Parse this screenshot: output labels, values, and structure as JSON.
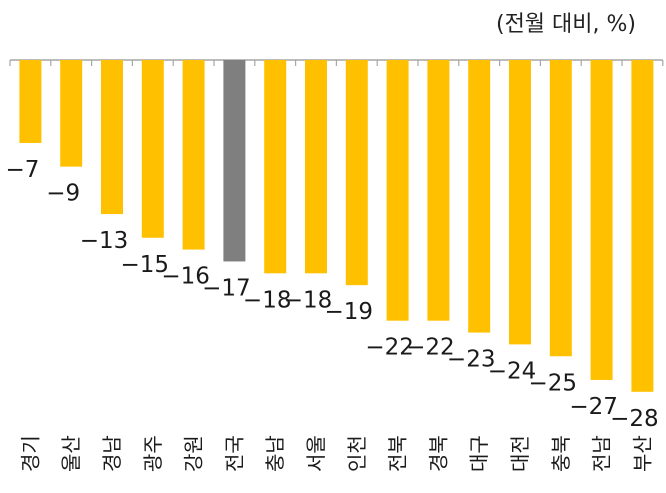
{
  "unit_label": "(전월 대비, %)",
  "chart_data": {
    "type": "bar",
    "title": "",
    "xlabel": "",
    "ylabel": "",
    "ylim": [
      -30,
      0
    ],
    "categories": [
      "경기",
      "울산",
      "경남",
      "광주",
      "강원",
      "전국",
      "충남",
      "서울",
      "인천",
      "전북",
      "경북",
      "대구",
      "대전",
      "충북",
      "전남",
      "부산"
    ],
    "values": [
      -7,
      -9,
      -13,
      -15,
      -16,
      -17,
      -18,
      -18,
      -19,
      -22,
      -22,
      -23,
      -24,
      -25,
      -27,
      -28
    ],
    "labels": [
      "−7",
      "−9",
      "−13",
      "−15",
      "−16",
      "−17",
      "−18",
      "−18",
      "−19",
      "−22",
      "−22",
      "−23",
      "−24",
      "−25",
      "−27",
      "−28"
    ],
    "highlight": "전국",
    "colors": {
      "bar": "#FFC000",
      "highlight": "#7F7F7F",
      "axis": "#A6A6A6"
    },
    "grid": false,
    "legend": "none"
  }
}
